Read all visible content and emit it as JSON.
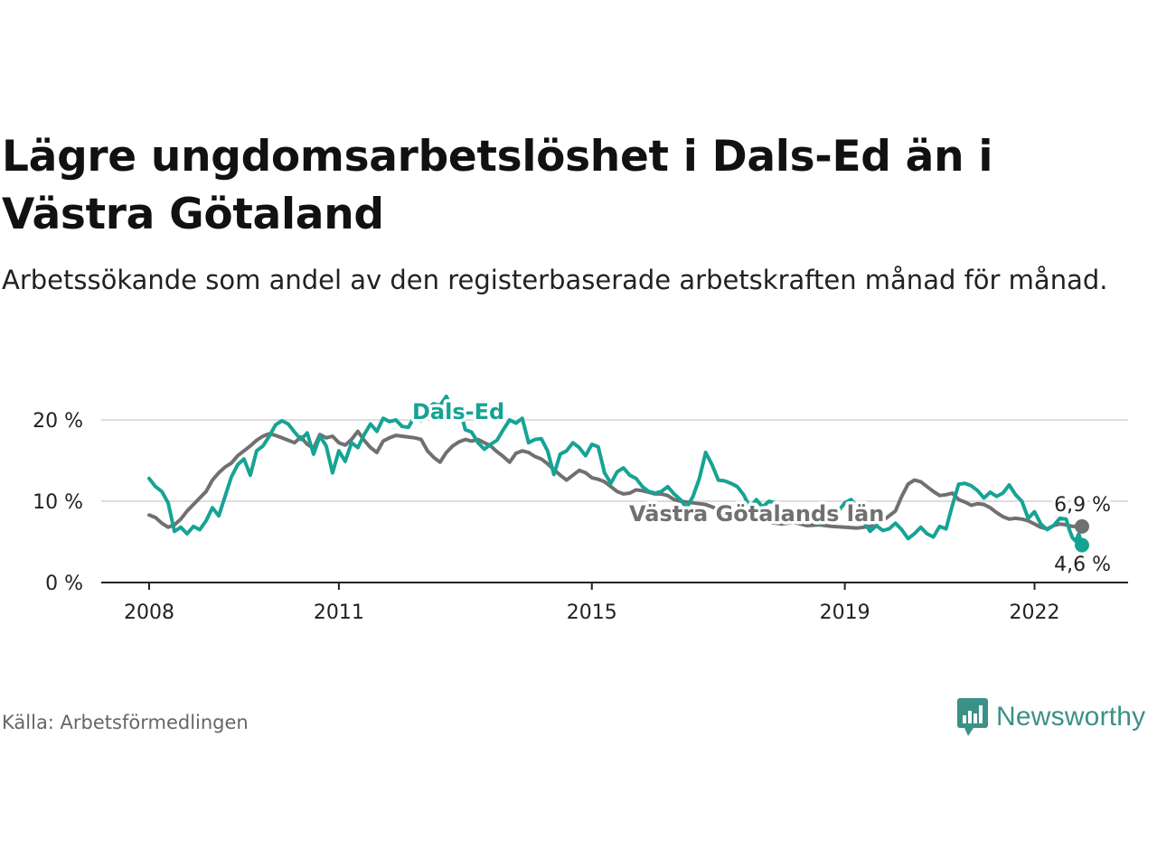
{
  "title": "Lägre ungdomsarbetslöshet i Dals-Ed än i Västra Götaland",
  "subtitle": "Arbetssökande som andel av den registerbaserade arbetskraften månad för månad.",
  "source": "Källa: Arbetsförmedlingen",
  "brand": "Newsworthy",
  "colors": {
    "dalsed": "#16a394",
    "vg": "#707070",
    "grid": "#dddddd",
    "axis": "#222222",
    "brand": "#3a9187"
  },
  "chart_data": {
    "type": "line",
    "title": "Lägre ungdomsarbetslöshet i Dals-Ed än i Västra Götaland",
    "xlabel": "",
    "ylabel": "",
    "xlim": [
      2008,
      2022.75
    ],
    "ylim": [
      0,
      22
    ],
    "y_ticks": [
      0,
      10,
      20
    ],
    "y_tick_labels": [
      "0 %",
      "10 %",
      "20 %"
    ],
    "x_ticks": [
      2008,
      2011,
      2015,
      2019,
      2022
    ],
    "x_tick_labels": [
      "2008",
      "2011",
      "2015",
      "2019",
      "2022"
    ],
    "grid": true,
    "series": [
      {
        "name": "Västra Götalands län",
        "label": "Västra Götalands län",
        "end_label": "6,9 %",
        "end_value": 6.9,
        "points": [
          [
            2008.0,
            8.3
          ],
          [
            2008.1,
            8.0
          ],
          [
            2008.2,
            7.3
          ],
          [
            2008.3,
            6.8
          ],
          [
            2008.4,
            7.1
          ],
          [
            2008.5,
            7.8
          ],
          [
            2008.6,
            8.8
          ],
          [
            2008.7,
            9.6
          ],
          [
            2008.8,
            10.4
          ],
          [
            2008.9,
            11.2
          ],
          [
            2009.0,
            12.6
          ],
          [
            2009.1,
            13.5
          ],
          [
            2009.2,
            14.2
          ],
          [
            2009.3,
            14.7
          ],
          [
            2009.4,
            15.6
          ],
          [
            2009.5,
            16.2
          ],
          [
            2009.6,
            16.8
          ],
          [
            2009.7,
            17.5
          ],
          [
            2009.8,
            18.0
          ],
          [
            2009.9,
            18.3
          ],
          [
            2010.0,
            18.1
          ],
          [
            2010.1,
            17.8
          ],
          [
            2010.2,
            17.5
          ],
          [
            2010.3,
            17.2
          ],
          [
            2010.4,
            17.9
          ],
          [
            2010.5,
            17.0
          ],
          [
            2010.6,
            16.5
          ],
          [
            2010.7,
            18.2
          ],
          [
            2010.8,
            17.8
          ],
          [
            2010.9,
            18.0
          ],
          [
            2011.0,
            17.2
          ],
          [
            2011.1,
            16.9
          ],
          [
            2011.2,
            17.6
          ],
          [
            2011.3,
            18.6
          ],
          [
            2011.4,
            17.5
          ],
          [
            2011.5,
            16.6
          ],
          [
            2011.6,
            16.0
          ],
          [
            2011.7,
            17.4
          ],
          [
            2011.8,
            17.8
          ],
          [
            2011.9,
            18.1
          ],
          [
            2012.0,
            18.0
          ],
          [
            2012.1,
            17.9
          ],
          [
            2012.2,
            17.8
          ],
          [
            2012.3,
            17.6
          ],
          [
            2012.4,
            16.2
          ],
          [
            2012.5,
            15.4
          ],
          [
            2012.6,
            14.8
          ],
          [
            2012.7,
            16.0
          ],
          [
            2012.8,
            16.8
          ],
          [
            2012.9,
            17.3
          ],
          [
            2013.0,
            17.6
          ],
          [
            2013.1,
            17.4
          ],
          [
            2013.2,
            17.6
          ],
          [
            2013.3,
            17.2
          ],
          [
            2013.4,
            16.8
          ],
          [
            2013.5,
            16.1
          ],
          [
            2013.6,
            15.5
          ],
          [
            2013.7,
            14.8
          ],
          [
            2013.8,
            15.9
          ],
          [
            2013.9,
            16.2
          ],
          [
            2014.0,
            16.0
          ],
          [
            2014.1,
            15.5
          ],
          [
            2014.2,
            15.2
          ],
          [
            2014.3,
            14.6
          ],
          [
            2014.4,
            13.9
          ],
          [
            2014.5,
            13.2
          ],
          [
            2014.6,
            12.6
          ],
          [
            2014.7,
            13.2
          ],
          [
            2014.8,
            13.8
          ],
          [
            2014.9,
            13.5
          ],
          [
            2015.0,
            12.9
          ],
          [
            2015.1,
            12.7
          ],
          [
            2015.2,
            12.4
          ],
          [
            2015.3,
            11.8
          ],
          [
            2015.4,
            11.2
          ],
          [
            2015.5,
            10.9
          ],
          [
            2015.6,
            11.0
          ],
          [
            2015.7,
            11.4
          ],
          [
            2015.8,
            11.3
          ],
          [
            2015.9,
            11.1
          ],
          [
            2016.0,
            10.9
          ],
          [
            2016.1,
            10.9
          ],
          [
            2016.2,
            10.7
          ],
          [
            2016.3,
            10.2
          ],
          [
            2016.4,
            10.0
          ],
          [
            2016.5,
            9.9
          ],
          [
            2016.6,
            9.8
          ],
          [
            2016.7,
            9.7
          ],
          [
            2016.8,
            9.6
          ],
          [
            2016.9,
            9.3
          ],
          [
            2017.0,
            9.0
          ],
          [
            2017.2,
            8.6
          ],
          [
            2017.4,
            8.0
          ],
          [
            2017.6,
            7.7
          ],
          [
            2017.8,
            7.4
          ],
          [
            2018.0,
            7.2
          ],
          [
            2018.2,
            7.4
          ],
          [
            2018.4,
            7.0
          ],
          [
            2018.6,
            7.1
          ],
          [
            2018.8,
            6.9
          ],
          [
            2019.0,
            6.8
          ],
          [
            2019.2,
            6.7
          ],
          [
            2019.4,
            6.9
          ],
          [
            2019.6,
            7.6
          ],
          [
            2019.8,
            8.8
          ],
          [
            2019.9,
            10.6
          ],
          [
            2020.0,
            12.1
          ],
          [
            2020.1,
            12.6
          ],
          [
            2020.2,
            12.4
          ],
          [
            2020.3,
            11.8
          ],
          [
            2020.4,
            11.2
          ],
          [
            2020.5,
            10.7
          ],
          [
            2020.6,
            10.8
          ],
          [
            2020.7,
            11.0
          ],
          [
            2020.8,
            10.2
          ],
          [
            2020.9,
            9.9
          ],
          [
            2021.0,
            9.5
          ],
          [
            2021.1,
            9.7
          ],
          [
            2021.2,
            9.6
          ],
          [
            2021.3,
            9.2
          ],
          [
            2021.4,
            8.6
          ],
          [
            2021.5,
            8.1
          ],
          [
            2021.6,
            7.8
          ],
          [
            2021.7,
            7.9
          ],
          [
            2021.8,
            7.8
          ],
          [
            2021.9,
            7.6
          ],
          [
            2022.0,
            7.2
          ],
          [
            2022.1,
            6.8
          ],
          [
            2022.2,
            6.6
          ],
          [
            2022.3,
            7.0
          ],
          [
            2022.4,
            7.2
          ],
          [
            2022.5,
            7.1
          ],
          [
            2022.6,
            6.9
          ],
          [
            2022.75,
            6.9
          ]
        ]
      },
      {
        "name": "Dals-Ed",
        "label": "Dals-Ed",
        "end_label": "4,6 %",
        "end_value": 4.6,
        "points": [
          [
            2008.0,
            12.8
          ],
          [
            2008.1,
            11.8
          ],
          [
            2008.2,
            11.2
          ],
          [
            2008.3,
            9.8
          ],
          [
            2008.4,
            6.3
          ],
          [
            2008.5,
            6.8
          ],
          [
            2008.6,
            6.0
          ],
          [
            2008.7,
            6.9
          ],
          [
            2008.8,
            6.5
          ],
          [
            2008.9,
            7.6
          ],
          [
            2009.0,
            9.2
          ],
          [
            2009.1,
            8.2
          ],
          [
            2009.2,
            10.6
          ],
          [
            2009.3,
            13.0
          ],
          [
            2009.4,
            14.5
          ],
          [
            2009.5,
            15.2
          ],
          [
            2009.6,
            13.2
          ],
          [
            2009.7,
            16.2
          ],
          [
            2009.8,
            16.8
          ],
          [
            2009.9,
            18.0
          ],
          [
            2010.0,
            19.4
          ],
          [
            2010.1,
            19.9
          ],
          [
            2010.2,
            19.5
          ],
          [
            2010.3,
            18.5
          ],
          [
            2010.4,
            17.6
          ],
          [
            2010.5,
            18.4
          ],
          [
            2010.6,
            15.8
          ],
          [
            2010.7,
            18.0
          ],
          [
            2010.8,
            16.8
          ],
          [
            2010.9,
            13.5
          ],
          [
            2011.0,
            16.2
          ],
          [
            2011.1,
            14.9
          ],
          [
            2011.2,
            17.2
          ],
          [
            2011.3,
            16.6
          ],
          [
            2011.4,
            18.2
          ],
          [
            2011.5,
            19.5
          ],
          [
            2011.6,
            18.6
          ],
          [
            2011.7,
            20.2
          ],
          [
            2011.8,
            19.8
          ],
          [
            2011.9,
            20.0
          ],
          [
            2012.0,
            19.2
          ],
          [
            2012.1,
            19.1
          ],
          [
            2012.2,
            20.5
          ],
          [
            2012.3,
            19.9
          ],
          [
            2012.4,
            21.4
          ],
          [
            2012.5,
            22.0
          ],
          [
            2012.6,
            21.8
          ],
          [
            2012.7,
            22.9
          ],
          [
            2012.8,
            21.1
          ],
          [
            2012.9,
            21.6
          ],
          [
            2013.0,
            18.8
          ],
          [
            2013.1,
            18.5
          ],
          [
            2013.2,
            17.2
          ],
          [
            2013.3,
            16.4
          ],
          [
            2013.4,
            17.0
          ],
          [
            2013.5,
            17.5
          ],
          [
            2013.6,
            18.8
          ],
          [
            2013.7,
            20.0
          ],
          [
            2013.8,
            19.6
          ],
          [
            2013.9,
            20.2
          ],
          [
            2014.0,
            17.2
          ],
          [
            2014.1,
            17.6
          ],
          [
            2014.2,
            17.7
          ],
          [
            2014.3,
            16.2
          ],
          [
            2014.4,
            13.3
          ],
          [
            2014.5,
            15.8
          ],
          [
            2014.6,
            16.2
          ],
          [
            2014.7,
            17.2
          ],
          [
            2014.8,
            16.6
          ],
          [
            2014.9,
            15.6
          ],
          [
            2015.0,
            17.0
          ],
          [
            2015.1,
            16.7
          ],
          [
            2015.2,
            13.5
          ],
          [
            2015.3,
            12.2
          ],
          [
            2015.4,
            13.6
          ],
          [
            2015.5,
            14.1
          ],
          [
            2015.6,
            13.2
          ],
          [
            2015.7,
            12.8
          ],
          [
            2015.8,
            11.8
          ],
          [
            2015.9,
            11.2
          ],
          [
            2016.0,
            11.0
          ],
          [
            2016.1,
            11.2
          ],
          [
            2016.2,
            11.8
          ],
          [
            2016.3,
            10.9
          ],
          [
            2016.4,
            10.2
          ],
          [
            2016.5,
            9.2
          ],
          [
            2016.6,
            10.6
          ],
          [
            2016.7,
            12.8
          ],
          [
            2016.8,
            16.0
          ],
          [
            2016.9,
            14.5
          ],
          [
            2017.0,
            12.6
          ],
          [
            2017.1,
            12.5
          ],
          [
            2017.2,
            12.2
          ],
          [
            2017.3,
            11.8
          ],
          [
            2017.4,
            10.8
          ],
          [
            2017.5,
            9.2
          ],
          [
            2017.6,
            10.2
          ],
          [
            2017.7,
            9.3
          ],
          [
            2017.8,
            10.0
          ],
          [
            2017.9,
            9.8
          ],
          [
            2018.0,
            9.0
          ],
          [
            2018.2,
            8.4
          ],
          [
            2018.4,
            7.6
          ],
          [
            2018.6,
            7.2
          ],
          [
            2018.8,
            7.8
          ],
          [
            2019.0,
            9.8
          ],
          [
            2019.1,
            10.2
          ],
          [
            2019.2,
            9.2
          ],
          [
            2019.3,
            7.5
          ],
          [
            2019.4,
            6.3
          ],
          [
            2019.5,
            7.0
          ],
          [
            2019.6,
            6.4
          ],
          [
            2019.7,
            6.6
          ],
          [
            2019.8,
            7.3
          ],
          [
            2019.9,
            6.5
          ],
          [
            2020.0,
            5.4
          ],
          [
            2020.1,
            6.0
          ],
          [
            2020.2,
            6.8
          ],
          [
            2020.3,
            6.0
          ],
          [
            2020.4,
            5.6
          ],
          [
            2020.5,
            6.9
          ],
          [
            2020.6,
            6.6
          ],
          [
            2020.7,
            9.5
          ],
          [
            2020.8,
            12.1
          ],
          [
            2020.9,
            12.2
          ],
          [
            2021.0,
            11.9
          ],
          [
            2021.1,
            11.3
          ],
          [
            2021.2,
            10.4
          ],
          [
            2021.3,
            11.1
          ],
          [
            2021.4,
            10.6
          ],
          [
            2021.5,
            11.0
          ],
          [
            2021.6,
            12.0
          ],
          [
            2021.7,
            10.8
          ],
          [
            2021.8,
            10.0
          ],
          [
            2021.9,
            7.9
          ],
          [
            2022.0,
            8.7
          ],
          [
            2022.1,
            7.2
          ],
          [
            2022.2,
            6.5
          ],
          [
            2022.3,
            7.0
          ],
          [
            2022.4,
            7.9
          ],
          [
            2022.5,
            7.8
          ],
          [
            2022.55,
            6.5
          ],
          [
            2022.6,
            5.5
          ],
          [
            2022.65,
            5.1
          ],
          [
            2022.7,
            6.0
          ],
          [
            2022.75,
            4.6
          ]
        ]
      }
    ]
  }
}
